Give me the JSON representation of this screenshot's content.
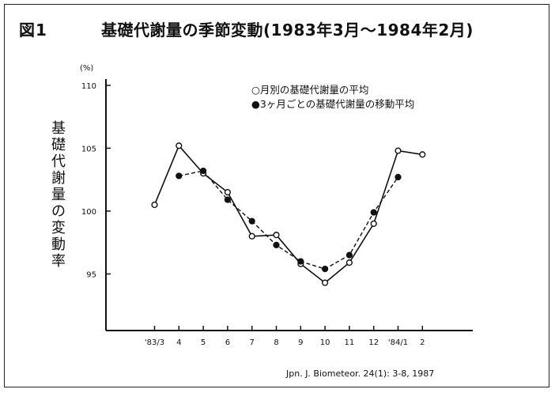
{
  "figure": {
    "number": "図1",
    "title": "基礎代謝量の季節変動(1983年3月～1984年2月)",
    "source": "Jpn. J. Biometeor. 24(1): 3-8, 1987"
  },
  "chart_data": {
    "type": "line",
    "ylabel": "基礎代謝量の変動率",
    "yunit": "(%)",
    "ylim": [
      90.5,
      110.5
    ],
    "yticks": [
      95,
      100,
      105,
      110
    ],
    "categories": [
      "'83/3",
      "4",
      "5",
      "6",
      "7",
      "8",
      "9",
      "10",
      "11",
      "12",
      "'84/1",
      "2"
    ],
    "legend": [
      "○月別の基礎代謝量の平均",
      "●3ヶ月ごとの基礎代謝量の移動平均"
    ],
    "legend_position": "top-right",
    "grid": false,
    "series": [
      {
        "name": "月別の基礎代謝量の平均",
        "marker": "open-circle",
        "style": "solid",
        "values": [
          100.5,
          105.2,
          103.0,
          101.5,
          98.0,
          98.1,
          95.8,
          94.3,
          95.9,
          99.0,
          104.8,
          104.5
        ]
      },
      {
        "name": "3ヶ月ごとの基礎代謝量の移動平均",
        "marker": "filled-circle",
        "style": "dashed",
        "values": [
          null,
          102.8,
          103.2,
          100.9,
          99.2,
          97.3,
          96.0,
          95.4,
          96.5,
          99.9,
          102.7,
          null
        ]
      }
    ],
    "colors": {
      "line": "#111111",
      "marker_fill": "#111111",
      "marker_open": "#ffffff"
    }
  }
}
